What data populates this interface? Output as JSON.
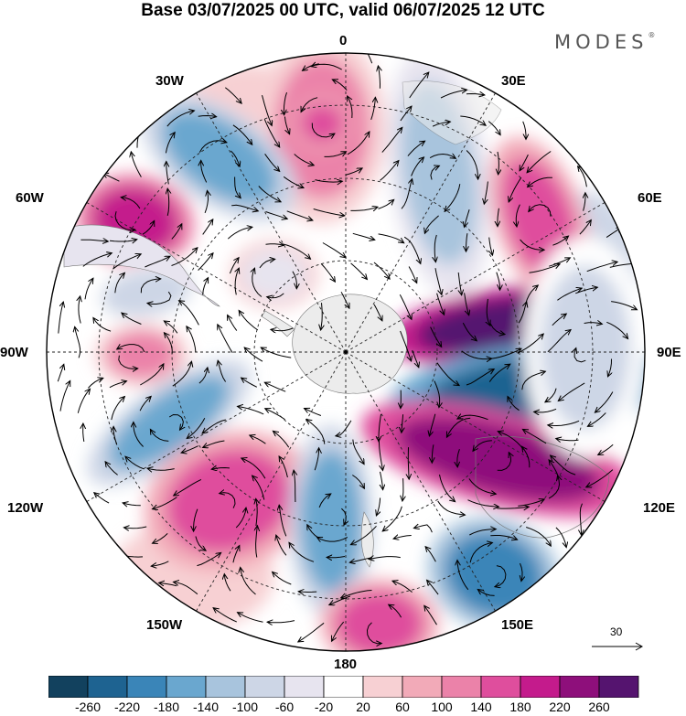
{
  "title": "Base 03/07/2025 00 UTC, valid 06/07/2025 12 UTC",
  "brand": "MODES",
  "brand_mark": "®",
  "longitude_labels": {
    "top": "0",
    "top_left": "30W",
    "top_right": "30E",
    "upper_left": "60W",
    "upper_right": "60E",
    "left": "90W",
    "right": "90E",
    "lower_left": "120W",
    "lower_right": "120E",
    "bottom_left": "150W",
    "bottom_right": "150E",
    "bottom": "180"
  },
  "reference_vector": {
    "label": "30"
  },
  "colorbar": {
    "labels": [
      "-260",
      "-220",
      "-180",
      "-140",
      "-100",
      "-60",
      "-20",
      "20",
      "60",
      "100",
      "140",
      "180",
      "220",
      "260"
    ],
    "colors": [
      "#12415e",
      "#1e6391",
      "#3a85b8",
      "#6aa7cf",
      "#a8c4dd",
      "#cdd6e6",
      "#e7e4ef",
      "#ffffff",
      "#f7d0d3",
      "#f2aab8",
      "#eb82a9",
      "#df4e9d",
      "#c41b8c",
      "#8e0f7b",
      "#55146f"
    ]
  },
  "map": {
    "projection": "south-polar-stereographic",
    "land_color": "#ececec",
    "features": [
      "Antarctica",
      "South America",
      "Africa",
      "Australia",
      "New Zealand"
    ],
    "anomaly_patches": [
      {
        "name": "cell-0E-a",
        "value": 100
      },
      {
        "name": "cell-0E-b",
        "value": 140
      },
      {
        "name": "cell-30W",
        "value": -180
      },
      {
        "name": "cell-15E",
        "value": -140
      },
      {
        "name": "cell-60E",
        "value": 140
      },
      {
        "name": "cell-60W",
        "value": 180
      },
      {
        "name": "cell-80W",
        "value": -100
      },
      {
        "name": "cell-90W",
        "value": 100
      },
      {
        "name": "cell-100W",
        "value": -180
      },
      {
        "name": "cell-130W",
        "value": 140
      },
      {
        "name": "cell-165W",
        "value": -180
      },
      {
        "name": "cell-180",
        "value": 140
      },
      {
        "name": "cell-80E-pos",
        "value": 260
      },
      {
        "name": "cell-100E-neg",
        "value": -260
      },
      {
        "name": "cell-115E-pos",
        "value": 220
      },
      {
        "name": "cell-150E-neg",
        "value": -220
      },
      {
        "name": "cell-120E-neg-band",
        "value": -100
      },
      {
        "name": "cell-45W",
        "value": -60
      }
    ]
  }
}
